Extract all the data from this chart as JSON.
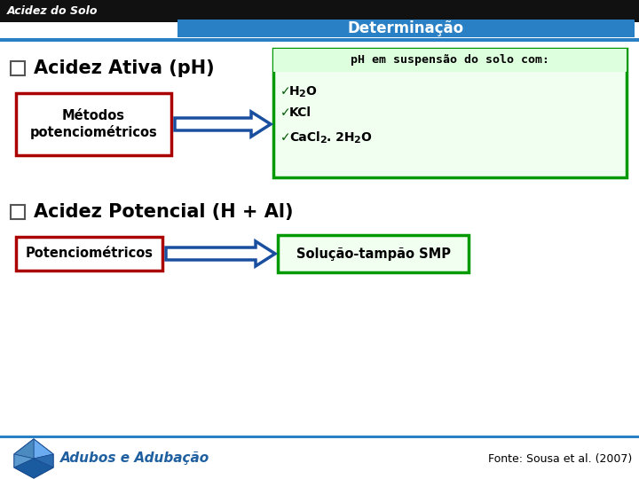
{
  "title_left": "Acidez do Solo",
  "title_left_bg": "#111111",
  "title_left_fg": "#ffffff",
  "title_right": "Determinação",
  "title_right_bg": "#2980c4",
  "title_right_fg": "#ffffff",
  "heading1": " Acidez Ativa (pH)",
  "heading2": " Acidez Potencial (H + Al)",
  "box1_label": "Métodos\npotenciométricos",
  "box1_border": "#aa0000",
  "box1_bg": "#ffffff",
  "arrow_color": "#1a4fa0",
  "arrow_fill": "#ffffff",
  "green_box_title": "pH em suspensão do solo com:",
  "green_box_border": "#009900",
  "green_box_bg": "#f0fff0",
  "green_title_bg": "#ddffdd",
  "green_item1": "H",
  "green_item1_sub": "2",
  "green_item1_rest": "O",
  "green_item2": "KCl",
  "green_item3_pre": "CaCl",
  "green_item3_sub": "2",
  "green_item3_rest": ". 2H",
  "green_item3_sub2": "2",
  "green_item3_end": "O",
  "box2_label": "Potenciométricos",
  "box2_border": "#aa0000",
  "box2_bg": "#ffffff",
  "green_box2_label": "Solução-tampão SMP",
  "green_box2_border": "#009900",
  "green_box2_bg": "#f0fff0",
  "footer_left": "Adubos e Adubação",
  "footer_right": "Fonte: Sousa et al. (2007)",
  "footer_color": "#2060a0",
  "bg_color": "#ffffff",
  "header_stripe_color": "#2980c4"
}
